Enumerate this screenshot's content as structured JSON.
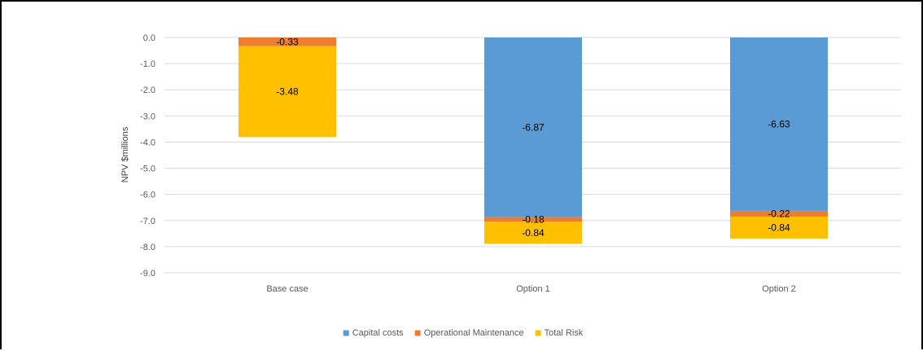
{
  "chart_data": {
    "type": "bar",
    "stacked": true,
    "title": "",
    "xlabel": "",
    "ylabel": "NPV $millions",
    "ylim": [
      -9.0,
      0.0
    ],
    "yticks": [
      "0.0",
      "-1.0",
      "-2.0",
      "-3.0",
      "-4.0",
      "-5.0",
      "-6.0",
      "-7.0",
      "-8.0",
      "-9.0"
    ],
    "grid": true,
    "legend_position": "bottom",
    "categories": [
      "Base case",
      "Option 1",
      "Option 2"
    ],
    "series": [
      {
        "name": "Capital costs",
        "color": "#5B9BD5",
        "values": [
          0,
          -6.87,
          -6.63
        ],
        "labels": [
          "",
          "-6.87",
          "-6.63"
        ]
      },
      {
        "name": "Operational Maintenance",
        "color": "#ED7D31",
        "values": [
          -0.33,
          -0.18,
          -0.22
        ],
        "labels": [
          "-0.33",
          "-0.18",
          "-0.22"
        ]
      },
      {
        "name": "Total Risk",
        "color": "#FFC000",
        "values": [
          -3.48,
          -0.84,
          -0.84
        ],
        "labels": [
          "-3.48",
          "-0.84",
          "-0.84"
        ]
      }
    ]
  }
}
